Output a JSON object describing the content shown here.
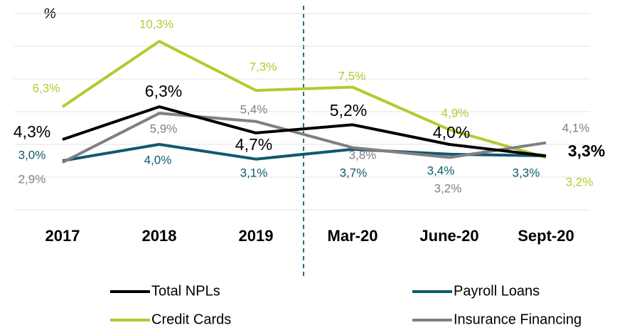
{
  "chart_data": {
    "type": "line",
    "y_axis_label": "%",
    "categories": [
      "2017",
      "2018",
      "2019",
      "Mar-20",
      "June-20",
      "Sept-20"
    ],
    "series": [
      {
        "name": "Total NPLs",
        "color": "#000000",
        "values": [
          4.3,
          6.3,
          4.7,
          5.2,
          4.0,
          3.3
        ],
        "value_labels": [
          "4,3%",
          "6,3%",
          "4,7%",
          "5,2%",
          "4,0%",
          "3,3%"
        ]
      },
      {
        "name": "Payroll Loans",
        "color": "#0e5a6e",
        "values": [
          3.0,
          4.0,
          3.1,
          3.7,
          3.4,
          3.3
        ],
        "value_labels": [
          "3,0%",
          "4,0%",
          "3,1%",
          "3,7%",
          "3,4%",
          "3,3%"
        ]
      },
      {
        "name": "Credit Cards",
        "color": "#b5c92e",
        "values": [
          6.3,
          10.3,
          7.3,
          7.5,
          4.9,
          3.2
        ],
        "value_labels": [
          "6,3%",
          "10,3%",
          "7,3%",
          "7,5%",
          "4,9%",
          "3,2%"
        ]
      },
      {
        "name": "Insurance Financing",
        "color": "#808080",
        "values": [
          2.9,
          5.9,
          5.4,
          3.8,
          3.2,
          4.1
        ],
        "value_labels": [
          "2,9%",
          "5,9%",
          "5,4%",
          "3,8%",
          "3,2%",
          "4,1%"
        ]
      }
    ],
    "ylim": [
      0,
      12
    ],
    "yticks": [
      0,
      2,
      4,
      6,
      8,
      10,
      12
    ],
    "grid": true
  }
}
